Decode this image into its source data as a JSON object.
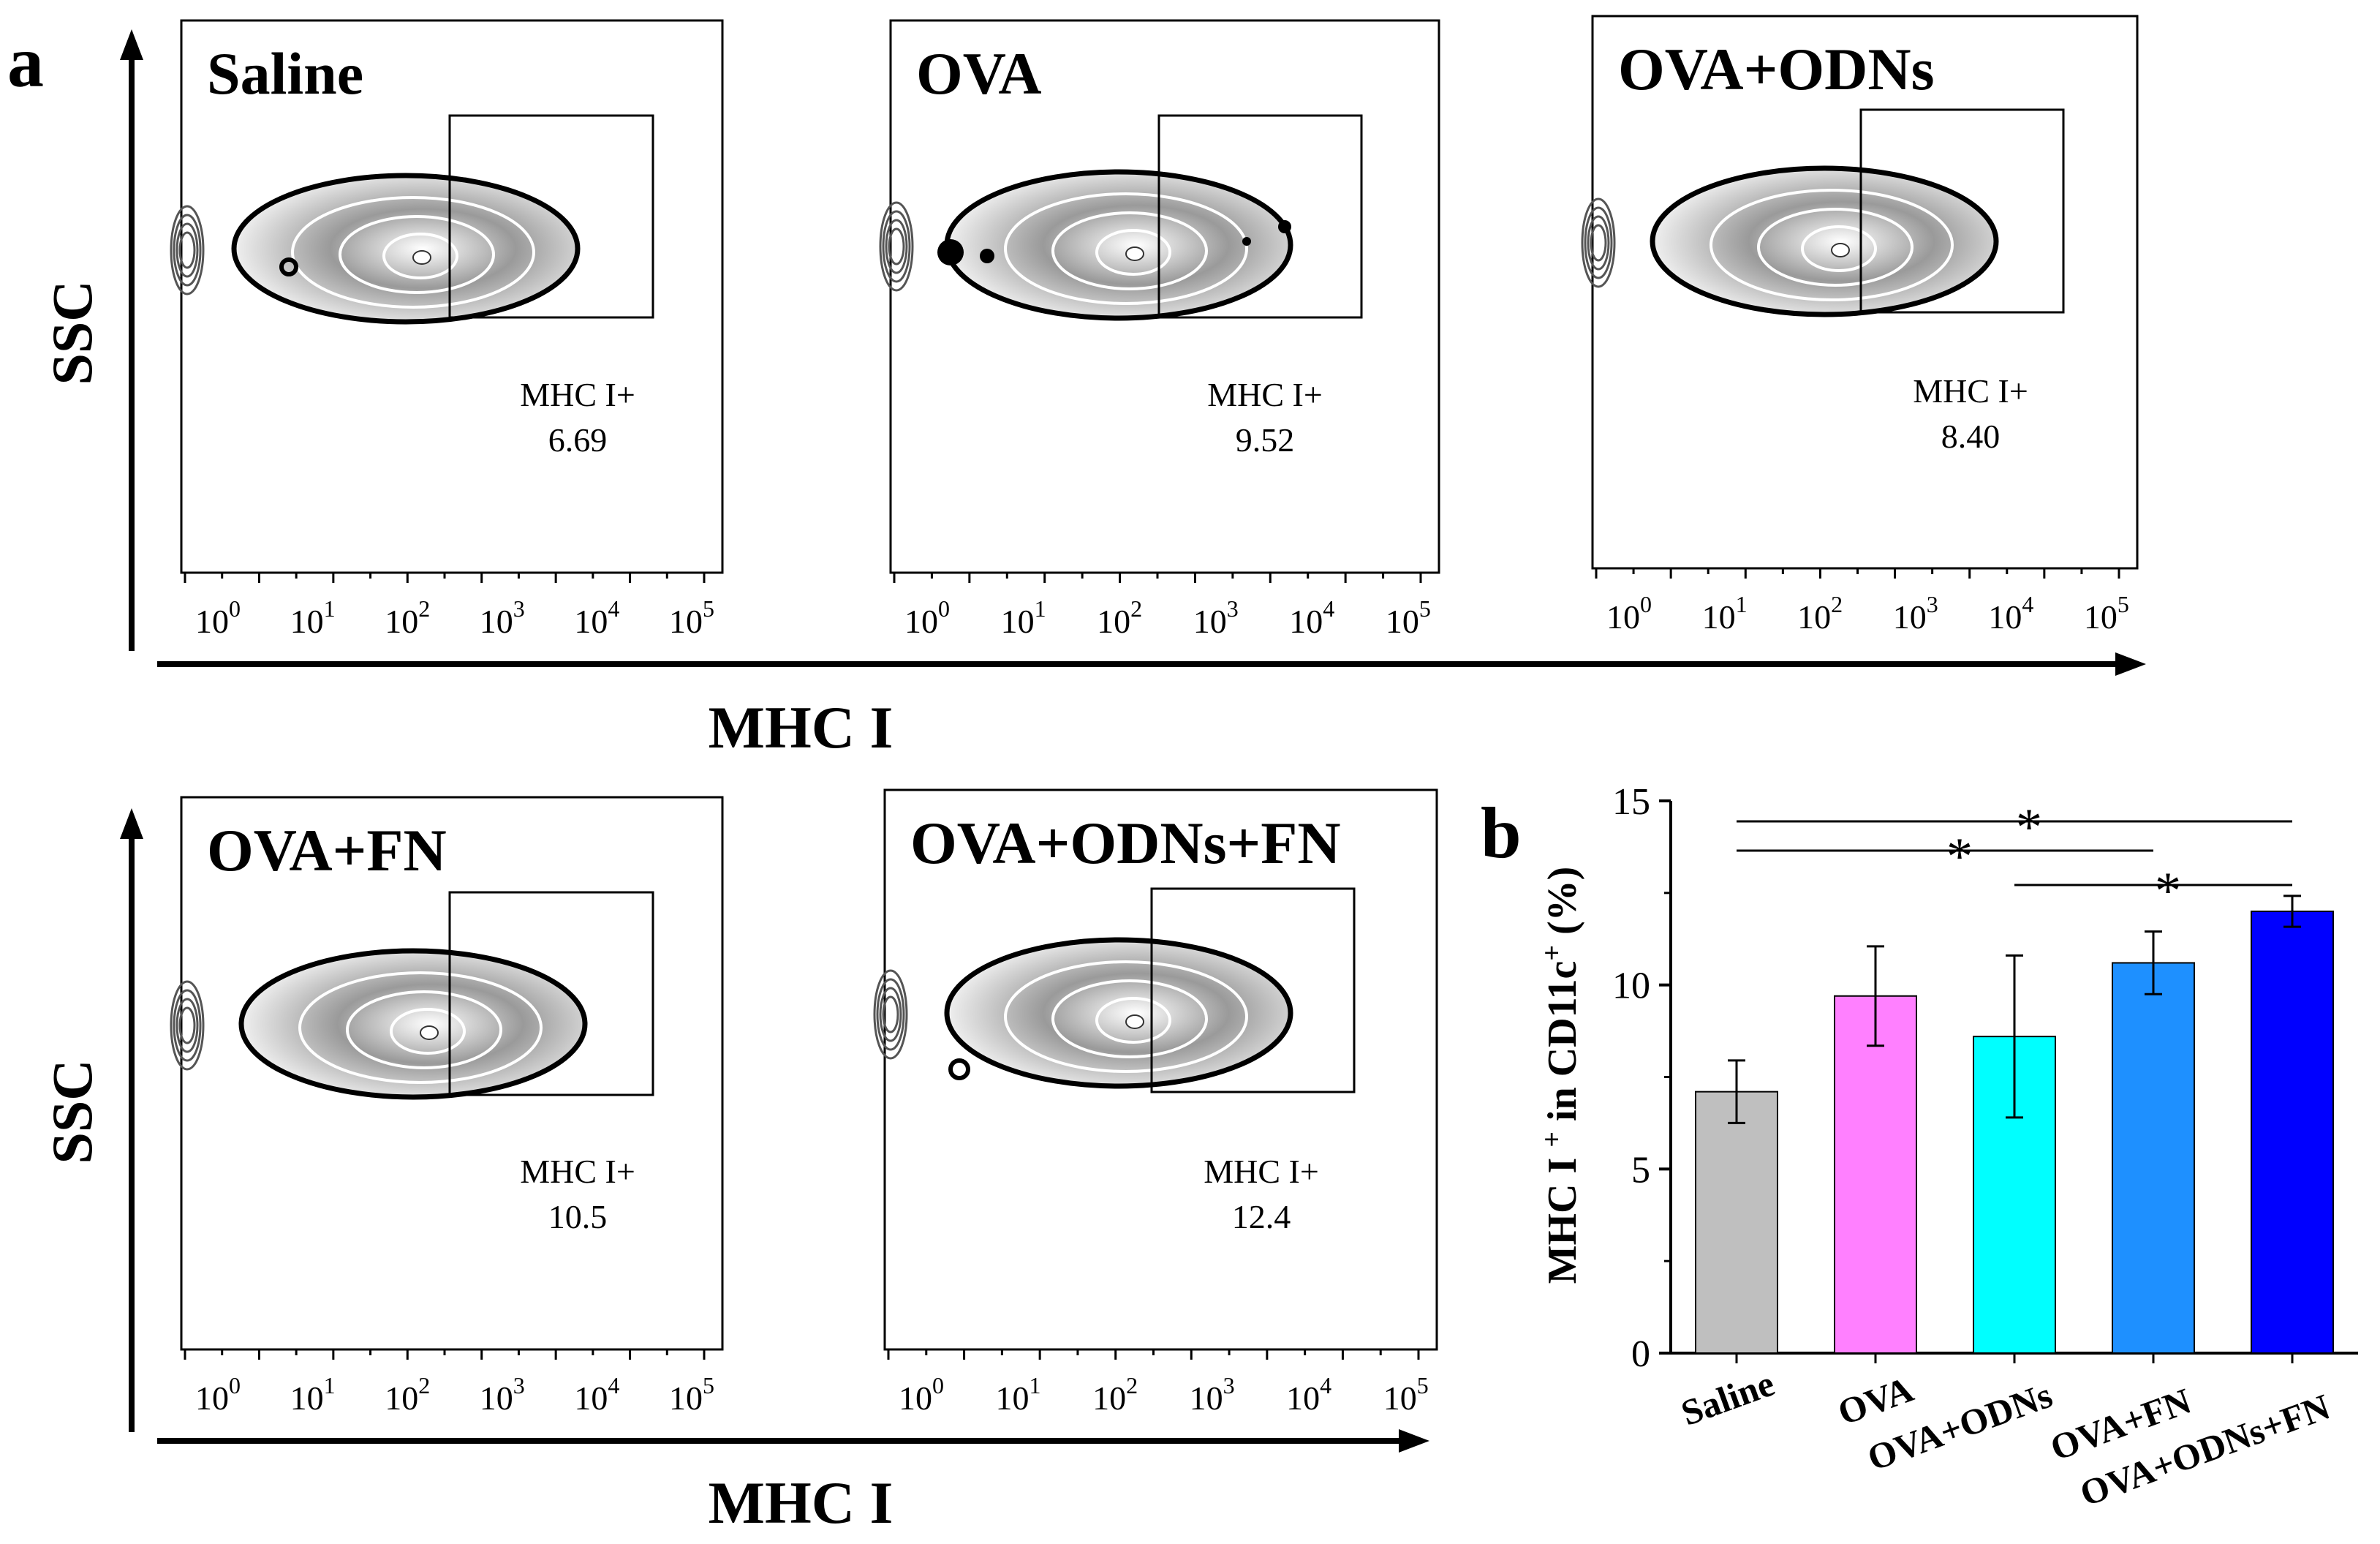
{
  "figure": {
    "panel_a_letter": "a",
    "panel_b_letter": "b",
    "x_axis_label": "MHC I",
    "y_axis_label": "SSC"
  },
  "flow_panels": [
    {
      "title": "Saline",
      "gate_label": "MHC I+",
      "gate_value": "6.69"
    },
    {
      "title": "OVA",
      "gate_label": "MHC I+",
      "gate_value": "9.52"
    },
    {
      "title": "OVA+ODNs",
      "gate_label": "MHC I+",
      "gate_value": "8.40"
    },
    {
      "title": "OVA+FN",
      "gate_label": "MHC I+",
      "gate_value": "10.5"
    },
    {
      "title": "OVA+ODNs+FN",
      "gate_label": "MHC I+",
      "gate_value": "12.4"
    }
  ],
  "flow_axis_ticks": [
    "10",
    "10",
    "10",
    "10",
    "10",
    "10"
  ],
  "flow_axis_exponents": [
    "0",
    "1",
    "2",
    "3",
    "4",
    "5"
  ],
  "chart_data": {
    "type": "bar",
    "title": "",
    "xlabel": "",
    "ylabel": "MHC I⁺ in CD11c⁺ (%)",
    "ylim": [
      0,
      15
    ],
    "yticks": [
      "0",
      "5",
      "10",
      "15"
    ],
    "categories": [
      "Saline",
      "OVA",
      "OVA+ODNs",
      "OVA+FN",
      "OVA+ODNs+FN"
    ],
    "values": [
      7.1,
      9.7,
      8.6,
      10.6,
      12.0
    ],
    "errors": [
      0.85,
      1.35,
      2.2,
      0.85,
      0.42
    ],
    "colors": [
      "#bfbfbf",
      "#ff80ff",
      "#00ffff",
      "#1e90ff",
      "#0000ff"
    ],
    "significance": [
      {
        "from": 0,
        "to": 4,
        "label": "*"
      },
      {
        "from": 0,
        "to": 3,
        "label": "*"
      },
      {
        "from": 2,
        "to": 4,
        "label": "*"
      }
    ]
  }
}
